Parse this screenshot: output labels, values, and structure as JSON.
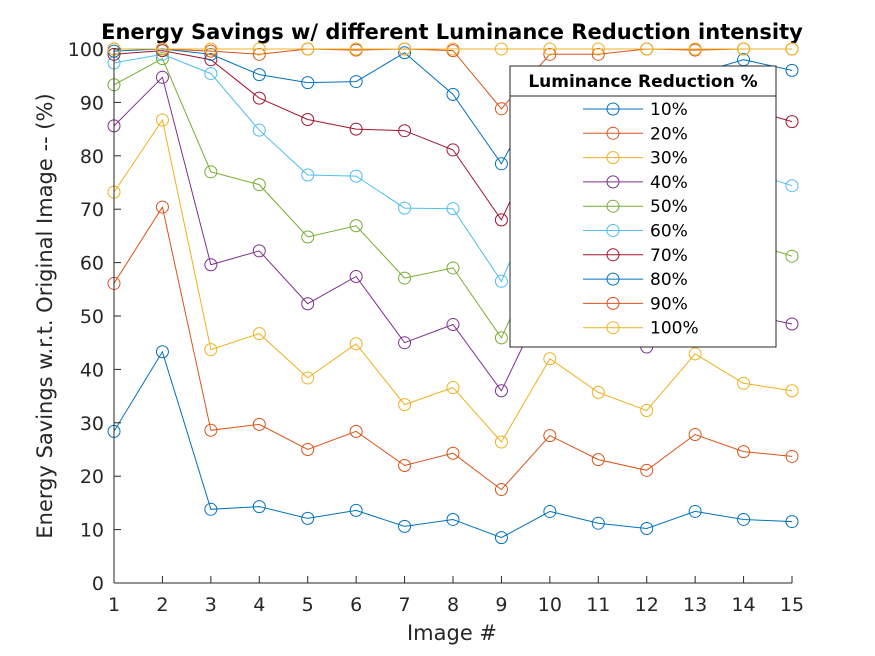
{
  "chart_data": {
    "type": "line",
    "title": "Energy Savings w/ different Luminance Reduction intensity",
    "xlabel": "Image #",
    "ylabel": "Energy Savings w.r.t. Original Image -- (%)",
    "x": [
      1,
      2,
      3,
      4,
      5,
      6,
      7,
      8,
      9,
      10,
      11,
      12,
      13,
      14,
      15
    ],
    "xlim": [
      1,
      15
    ],
    "ylim": [
      0,
      100
    ],
    "xticks": [
      "1",
      "2",
      "3",
      "4",
      "5",
      "6",
      "7",
      "8",
      "9",
      "10",
      "11",
      "12",
      "13",
      "14",
      "15"
    ],
    "yticks": [
      "0",
      "10",
      "20",
      "30",
      "40",
      "50",
      "60",
      "70",
      "80",
      "90",
      "100"
    ],
    "grid": false,
    "marker": "circle",
    "legend": {
      "title": "Luminance Reduction %",
      "location": "top-right"
    },
    "series": [
      {
        "name": "10%",
        "color": "#0072BD",
        "values": [
          28.4,
          43.3,
          13.8,
          14.3,
          12.1,
          13.6,
          10.6,
          11.9,
          8.5,
          13.4,
          11.2,
          10.2,
          13.4,
          11.9,
          11.5
        ]
      },
      {
        "name": "20%",
        "color": "#D95319",
        "values": [
          56.1,
          70.4,
          28.6,
          29.7,
          25.0,
          28.4,
          22.0,
          24.3,
          17.5,
          27.6,
          23.1,
          21.1,
          27.8,
          24.6,
          23.7
        ]
      },
      {
        "name": "30%",
        "color": "#EDB120",
        "values": [
          73.2,
          86.7,
          43.7,
          46.7,
          38.4,
          44.8,
          33.4,
          36.6,
          26.4,
          42.0,
          35.7,
          32.3,
          42.9,
          37.4,
          36.0
        ]
      },
      {
        "name": "40%",
        "color": "#7E2F8E",
        "values": [
          85.6,
          94.7,
          59.6,
          62.2,
          52.3,
          57.4,
          45.0,
          48.4,
          36.0,
          54.9,
          49.2,
          44.2,
          54.7,
          50.4,
          48.5
        ]
      },
      {
        "name": "50%",
        "color": "#77AC30",
        "values": [
          93.3,
          98.2,
          77.0,
          74.6,
          64.8,
          66.9,
          57.1,
          59.0,
          45.9,
          65.9,
          63.0,
          56.3,
          66.2,
          64.1,
          61.2
        ]
      },
      {
        "name": "60%",
        "color": "#4DBEEE",
        "values": [
          97.4,
          99.0,
          95.4,
          84.8,
          76.4,
          76.2,
          70.2,
          70.1,
          56.5,
          77.4,
          75.0,
          69.0,
          77.7,
          77.3,
          74.4
        ]
      },
      {
        "name": "70%",
        "color": "#A2142F",
        "values": [
          99.0,
          99.7,
          98.0,
          90.8,
          86.8,
          85.0,
          84.7,
          81.1,
          68.0,
          87.4,
          87.0,
          81.5,
          87.5,
          89.0,
          86.4
        ]
      },
      {
        "name": "80%",
        "color": "#0072BD",
        "values": [
          99.6,
          100.0,
          99.0,
          95.2,
          93.7,
          93.9,
          99.3,
          91.5,
          78.5,
          95.5,
          95.4,
          93.0,
          95.3,
          98.0,
          96.0
        ]
      },
      {
        "name": "90%",
        "color": "#D95319",
        "values": [
          100.0,
          100.0,
          99.6,
          99.0,
          100.0,
          99.8,
          100.0,
          99.7,
          88.8,
          99.0,
          99.0,
          100.0,
          99.8,
          100.0,
          100.0
        ]
      },
      {
        "name": "100%",
        "color": "#EDB120",
        "values": [
          100.0,
          100.0,
          100.0,
          100.0,
          100.0,
          100.0,
          100.0,
          100.0,
          100.0,
          100.0,
          100.0,
          100.0,
          100.0,
          100.0,
          100.0
        ]
      }
    ]
  }
}
